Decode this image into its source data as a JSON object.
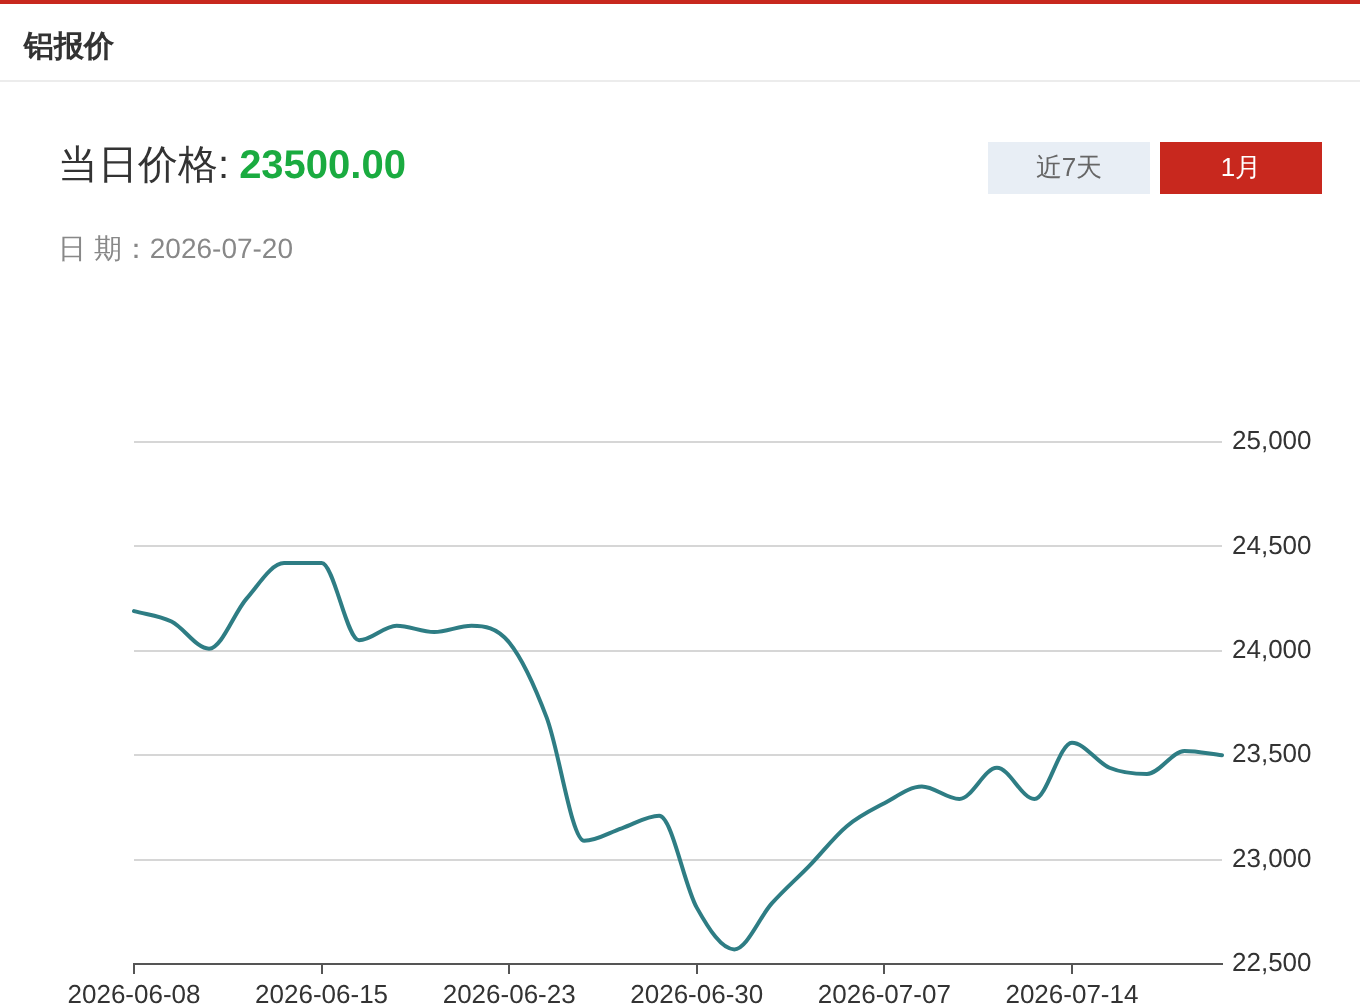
{
  "chart_data": {
    "type": "line",
    "title": "铝报价",
    "annotations": [
      "当日价格:",
      "23500.00",
      "日 期：2026-07-20",
      "近7天",
      "1月"
    ],
    "categories": [
      "2026-06-08",
      null,
      null,
      null,
      null,
      "2026-06-15",
      null,
      null,
      null,
      null,
      "2026-06-23",
      null,
      null,
      null,
      null,
      "2026-06-30",
      null,
      null,
      null,
      null,
      "2026-07-07",
      null,
      null,
      null,
      null,
      "2026-07-14",
      null,
      null,
      null,
      null
    ],
    "series": [
      {
        "color": "#2e7d84",
        "values": [
          24190,
          24140,
          24010,
          24250,
          24420,
          24420,
          24050,
          24120,
          24090,
          24120,
          24040,
          23680,
          23090,
          23150,
          23210,
          22770,
          22570,
          22790,
          22970,
          23160,
          23270,
          23350,
          23290,
          23440,
          23290,
          23560,
          23440,
          23410,
          23520,
          23500
        ]
      }
    ],
    "ylim": [
      22500,
      25000
    ],
    "yticks": [
      {
        "value": 22500,
        "label": "22,500"
      },
      {
        "value": 23000,
        "label": "23,000"
      },
      {
        "value": 23500,
        "label": "23,500"
      },
      {
        "value": 24000,
        "label": "24,000"
      },
      {
        "value": 24500,
        "label": "24,500"
      },
      {
        "value": 25000,
        "label": "25,000"
      }
    ],
    "grid": "y",
    "line_style": "solid"
  }
}
